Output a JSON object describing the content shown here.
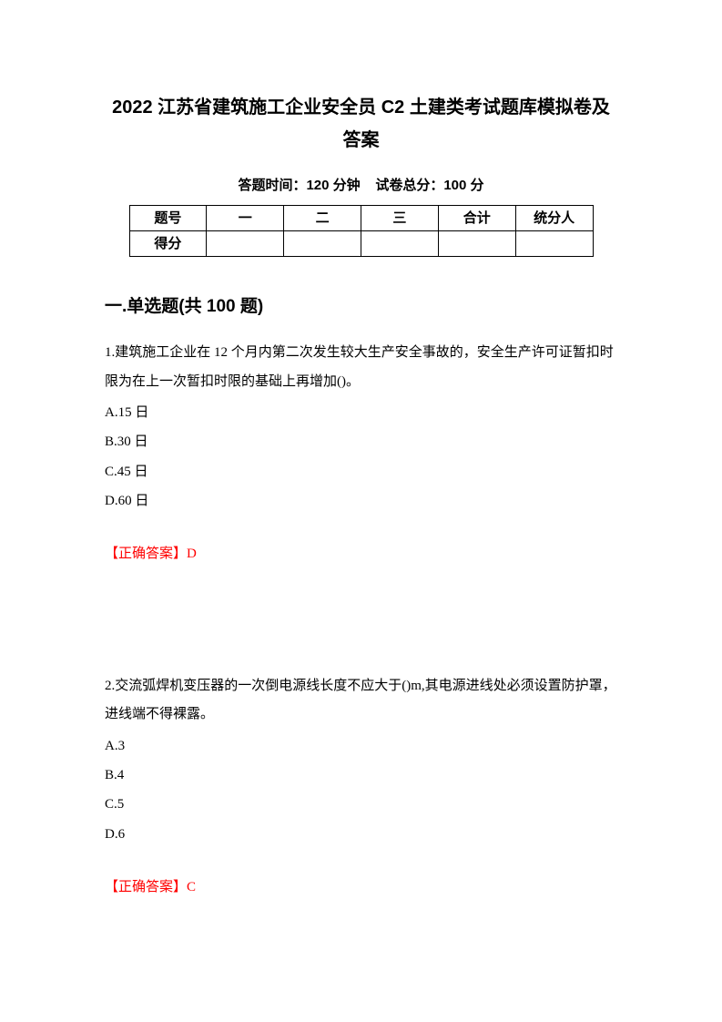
{
  "title": "2022 江苏省建筑施工企业安全员 C2 土建类考试题库模拟卷及答案",
  "subtitle_time_label": "答题时间：120 分钟",
  "subtitle_score_label": "试卷总分：100 分",
  "table": {
    "header_label": "题号",
    "col1": "一",
    "col2": "二",
    "col3": "三",
    "col4": "合计",
    "col5": "统分人",
    "score_label": "得分"
  },
  "section_header": "一.单选题(共 100 题)",
  "q1": {
    "text": "1.建筑施工企业在 12 个月内第二次发生较大生产安全事故的，安全生产许可证暂扣时限为在上一次暂扣时限的基础上再增加()。",
    "optA": "A.15 日",
    "optB": "B.30 日",
    "optC": "C.45 日",
    "optD": "D.60 日",
    "answer_label": "【正确答案】",
    "answer_value": "D"
  },
  "q2": {
    "text": "2.交流弧焊机变压器的一次倒电源线长度不应大于()m,其电源进线处必须设置防护罩，进线端不得裸露。",
    "optA": "A.3",
    "optB": "B.4",
    "optC": "C.5",
    "optD": "D.6",
    "answer_label": "【正确答案】",
    "answer_value": "C"
  }
}
